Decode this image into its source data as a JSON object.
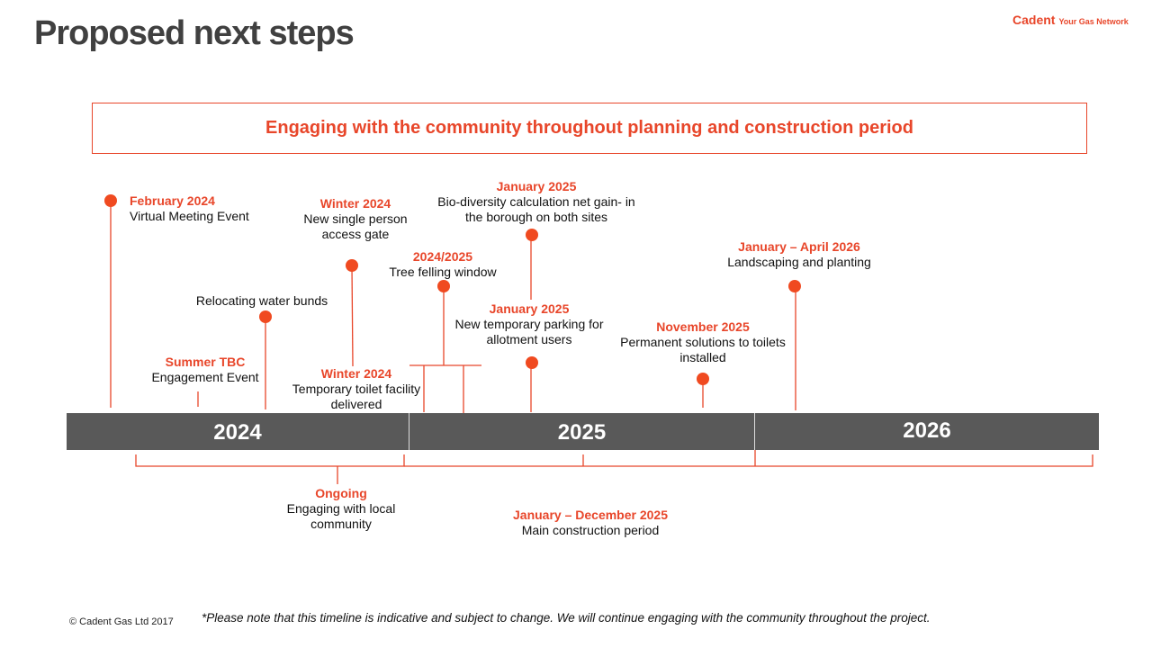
{
  "title": "Proposed next steps",
  "logo": {
    "brand": "Cadent",
    "tagline": "Your Gas Network"
  },
  "banner": "Engaging with the community throughout planning and construction period",
  "colors": {
    "accent": "#e8462a",
    "marker": "#f04a20",
    "bar": "#595959"
  },
  "years": [
    "2024",
    "2025",
    "2026"
  ],
  "events": [
    {
      "date": "February 2024",
      "desc": [
        "Virtual Meeting Event"
      ]
    },
    {
      "date": "",
      "desc": [
        "Relocating water bunds"
      ]
    },
    {
      "date": "Summer TBC",
      "desc": [
        "Engagement Event"
      ]
    },
    {
      "date": "Winter 2024",
      "desc": [
        "New single person",
        "access gate"
      ]
    },
    {
      "date": "Winter 2024",
      "desc": [
        "Temporary toilet facility",
        "delivered"
      ]
    },
    {
      "date": "2024/2025",
      "desc": [
        "Tree felling window"
      ]
    },
    {
      "date": "January 2025",
      "desc": [
        "Bio-diversity calculation net gain- in",
        "the borough on both sites"
      ]
    },
    {
      "date": "January 2025",
      "desc": [
        "New  temporary parking for",
        "allotment users"
      ]
    },
    {
      "date": "November 2025",
      "desc": [
        "Permanent solutions to toilets",
        "installed"
      ]
    },
    {
      "date": "January – April 2026",
      "desc": [
        "Landscaping and planting"
      ]
    }
  ],
  "periods": [
    {
      "date": "Ongoing",
      "desc": [
        "Engaging with local",
        "community"
      ]
    },
    {
      "date": "January – December 2025",
      "desc": [
        "Main construction period"
      ]
    }
  ],
  "footer": {
    "copyright": "© Cadent Gas Ltd 2017",
    "note": "*Please note that this timeline is indicative and subject to change. We will continue engaging with the community throughout the project."
  }
}
